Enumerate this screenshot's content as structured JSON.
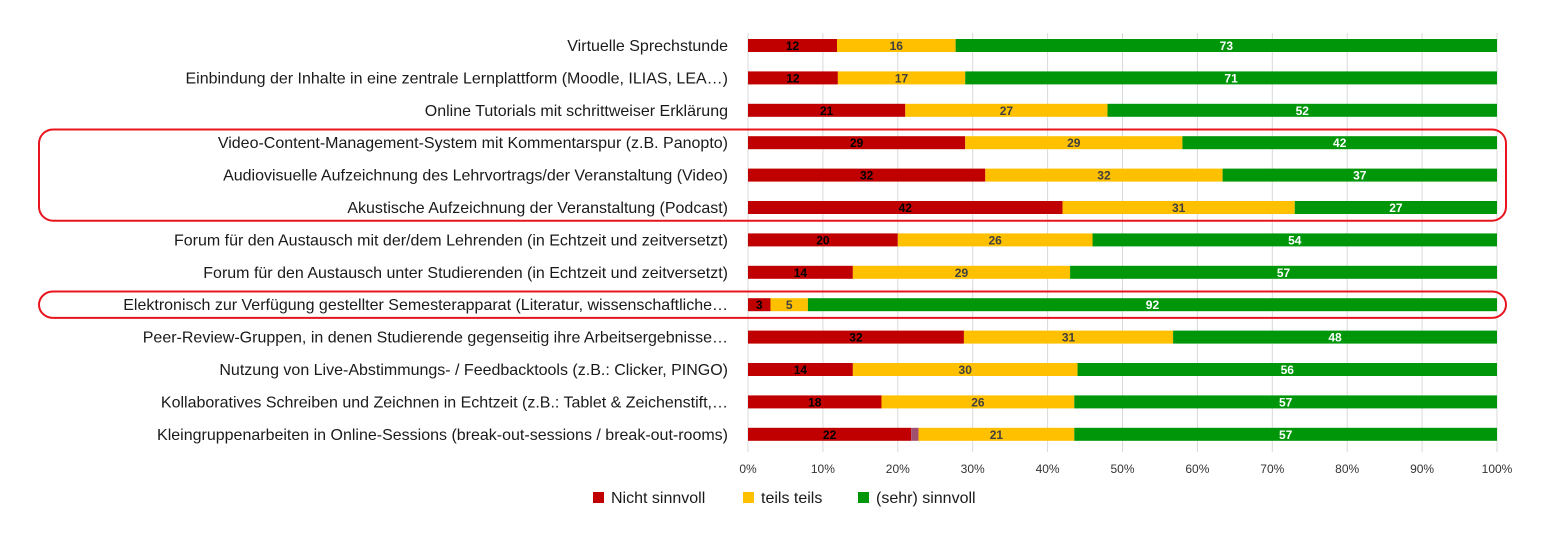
{
  "chart_data": {
    "type": "bar",
    "orientation": "horizontal",
    "stacked": "percent",
    "categories": [
      "Virtuelle Sprechstunde",
      "Einbindung der Inhalte in eine zentrale Lernplattform (Moodle, ILIAS, LEA…)",
      "Online Tutorials mit schrittweiser Erklärung",
      "Video-Content-Management-System mit Kommentarspur (z.B. Panopto)",
      "Audiovisuelle Aufzeichnung des Lehrvortrags/der Veranstaltung (Video)",
      "Akustische Aufzeichnung der Veranstaltung (Podcast)",
      "Forum für den Austausch mit der/dem Lehrenden (in Echtzeit und zeitversetzt)",
      "Forum für den Austausch unter Studierenden (in Echtzeit und zeitversetzt)",
      "Elektronisch zur Verfügung gestellter Semesterapparat (Literatur, wissenschaftliche…",
      "Peer-Review-Gruppen, in denen Studierende gegenseitig ihre Arbeitsergebnisse…",
      "Nutzung von Live-Abstimmungs- / Feedbacktools (z.B.: Clicker, PINGO)",
      "Kollaboratives Schreiben und Zeichnen in Echtzeit (z.B.: Tablet & Zeichenstift,…",
      "Kleingruppenarbeiten in Online-Sessions (break-out-sessions / break-out-rooms)"
    ],
    "series": [
      {
        "name": "Nicht sinnvoll",
        "color": "#c00000",
        "label_color": "#000000",
        "values": [
          12,
          12,
          21,
          29,
          32,
          42,
          20,
          14,
          3,
          32,
          14,
          18,
          22
        ]
      },
      {
        "name": "teils teils",
        "color": "#ffc000",
        "label_color": "#404040",
        "values": [
          16,
          17,
          27,
          29,
          32,
          31,
          26,
          29,
          5,
          31,
          30,
          26,
          21
        ]
      },
      {
        "name": "(sehr) sinnvoll",
        "color": "#00960a",
        "label_color": "#ffffff",
        "values": [
          73,
          71,
          52,
          42,
          37,
          27,
          54,
          57,
          92,
          48,
          56,
          57,
          57
        ]
      }
    ],
    "extra_segment": {
      "category_index": 12,
      "after_series": 0,
      "value": 1,
      "color": "#a0506e"
    },
    "x_ticks": [
      "0%",
      "10%",
      "20%",
      "30%",
      "40%",
      "50%",
      "60%",
      "70%",
      "80%",
      "90%",
      "100%"
    ],
    "xlim": [
      0,
      100
    ],
    "grid": "vertical",
    "legend": "bottom-center",
    "highlight_groups": [
      [
        3,
        5
      ],
      [
        8,
        8
      ]
    ],
    "highlight_color": "#e8141e",
    "title": "",
    "xlabel": "",
    "ylabel": ""
  }
}
